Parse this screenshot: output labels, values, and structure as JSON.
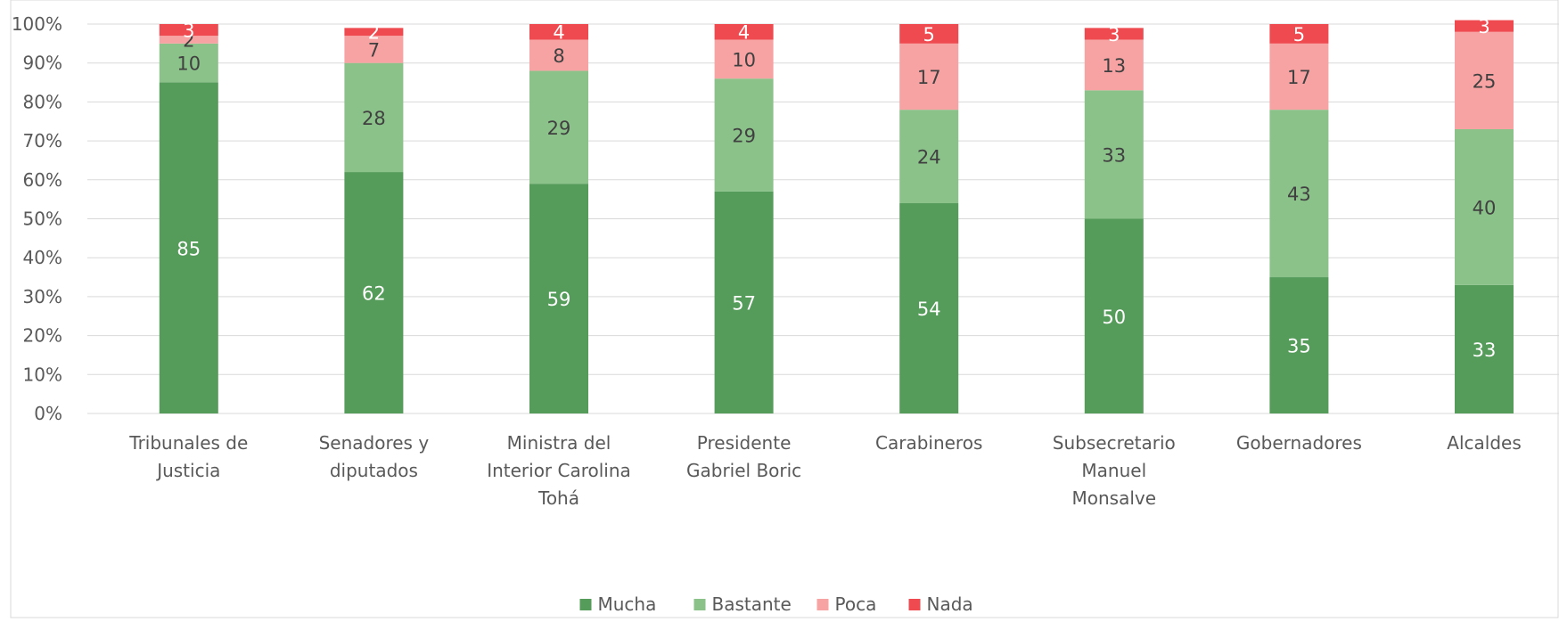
{
  "chart_data": {
    "type": "bar",
    "stacked": true,
    "categories": [
      [
        "Tribunales de",
        "Justicia"
      ],
      [
        "Senadores y",
        "diputados"
      ],
      [
        "Ministra del",
        "Interior Carolina",
        "Tohá"
      ],
      [
        "Presidente",
        "Gabriel Boric"
      ],
      [
        "Carabineros"
      ],
      [
        "Subsecretario",
        "Manuel",
        "Monsalve"
      ],
      [
        "Gobernadores"
      ],
      [
        "Alcaldes"
      ]
    ],
    "series": [
      {
        "name": "Mucha",
        "color": "#559b5a",
        "label_color": "#ffffff",
        "values": [
          85,
          62,
          59,
          57,
          54,
          50,
          35,
          33
        ]
      },
      {
        "name": "Bastante",
        "color": "#8bc28a",
        "label_color": "#404040",
        "values": [
          10,
          28,
          29,
          29,
          24,
          33,
          43,
          40
        ]
      },
      {
        "name": "Poca",
        "color": "#f7a3a3",
        "label_color": "#404040",
        "values": [
          2,
          7,
          8,
          10,
          17,
          13,
          17,
          25
        ]
      },
      {
        "name": "Nada",
        "color": "#ef4a4f",
        "label_color": "#ffffff",
        "values": [
          3,
          2,
          4,
          4,
          5,
          3,
          5,
          3
        ]
      }
    ],
    "ylim": [
      0,
      100
    ],
    "yticks": [
      "0%",
      "10%",
      "20%",
      "30%",
      "40%",
      "50%",
      "60%",
      "70%",
      "80%",
      "90%",
      "100%"
    ],
    "grid": true,
    "legend_position": "bottom",
    "gridline_color": "#d9d9d9",
    "border_color": "#d9d9d9"
  }
}
